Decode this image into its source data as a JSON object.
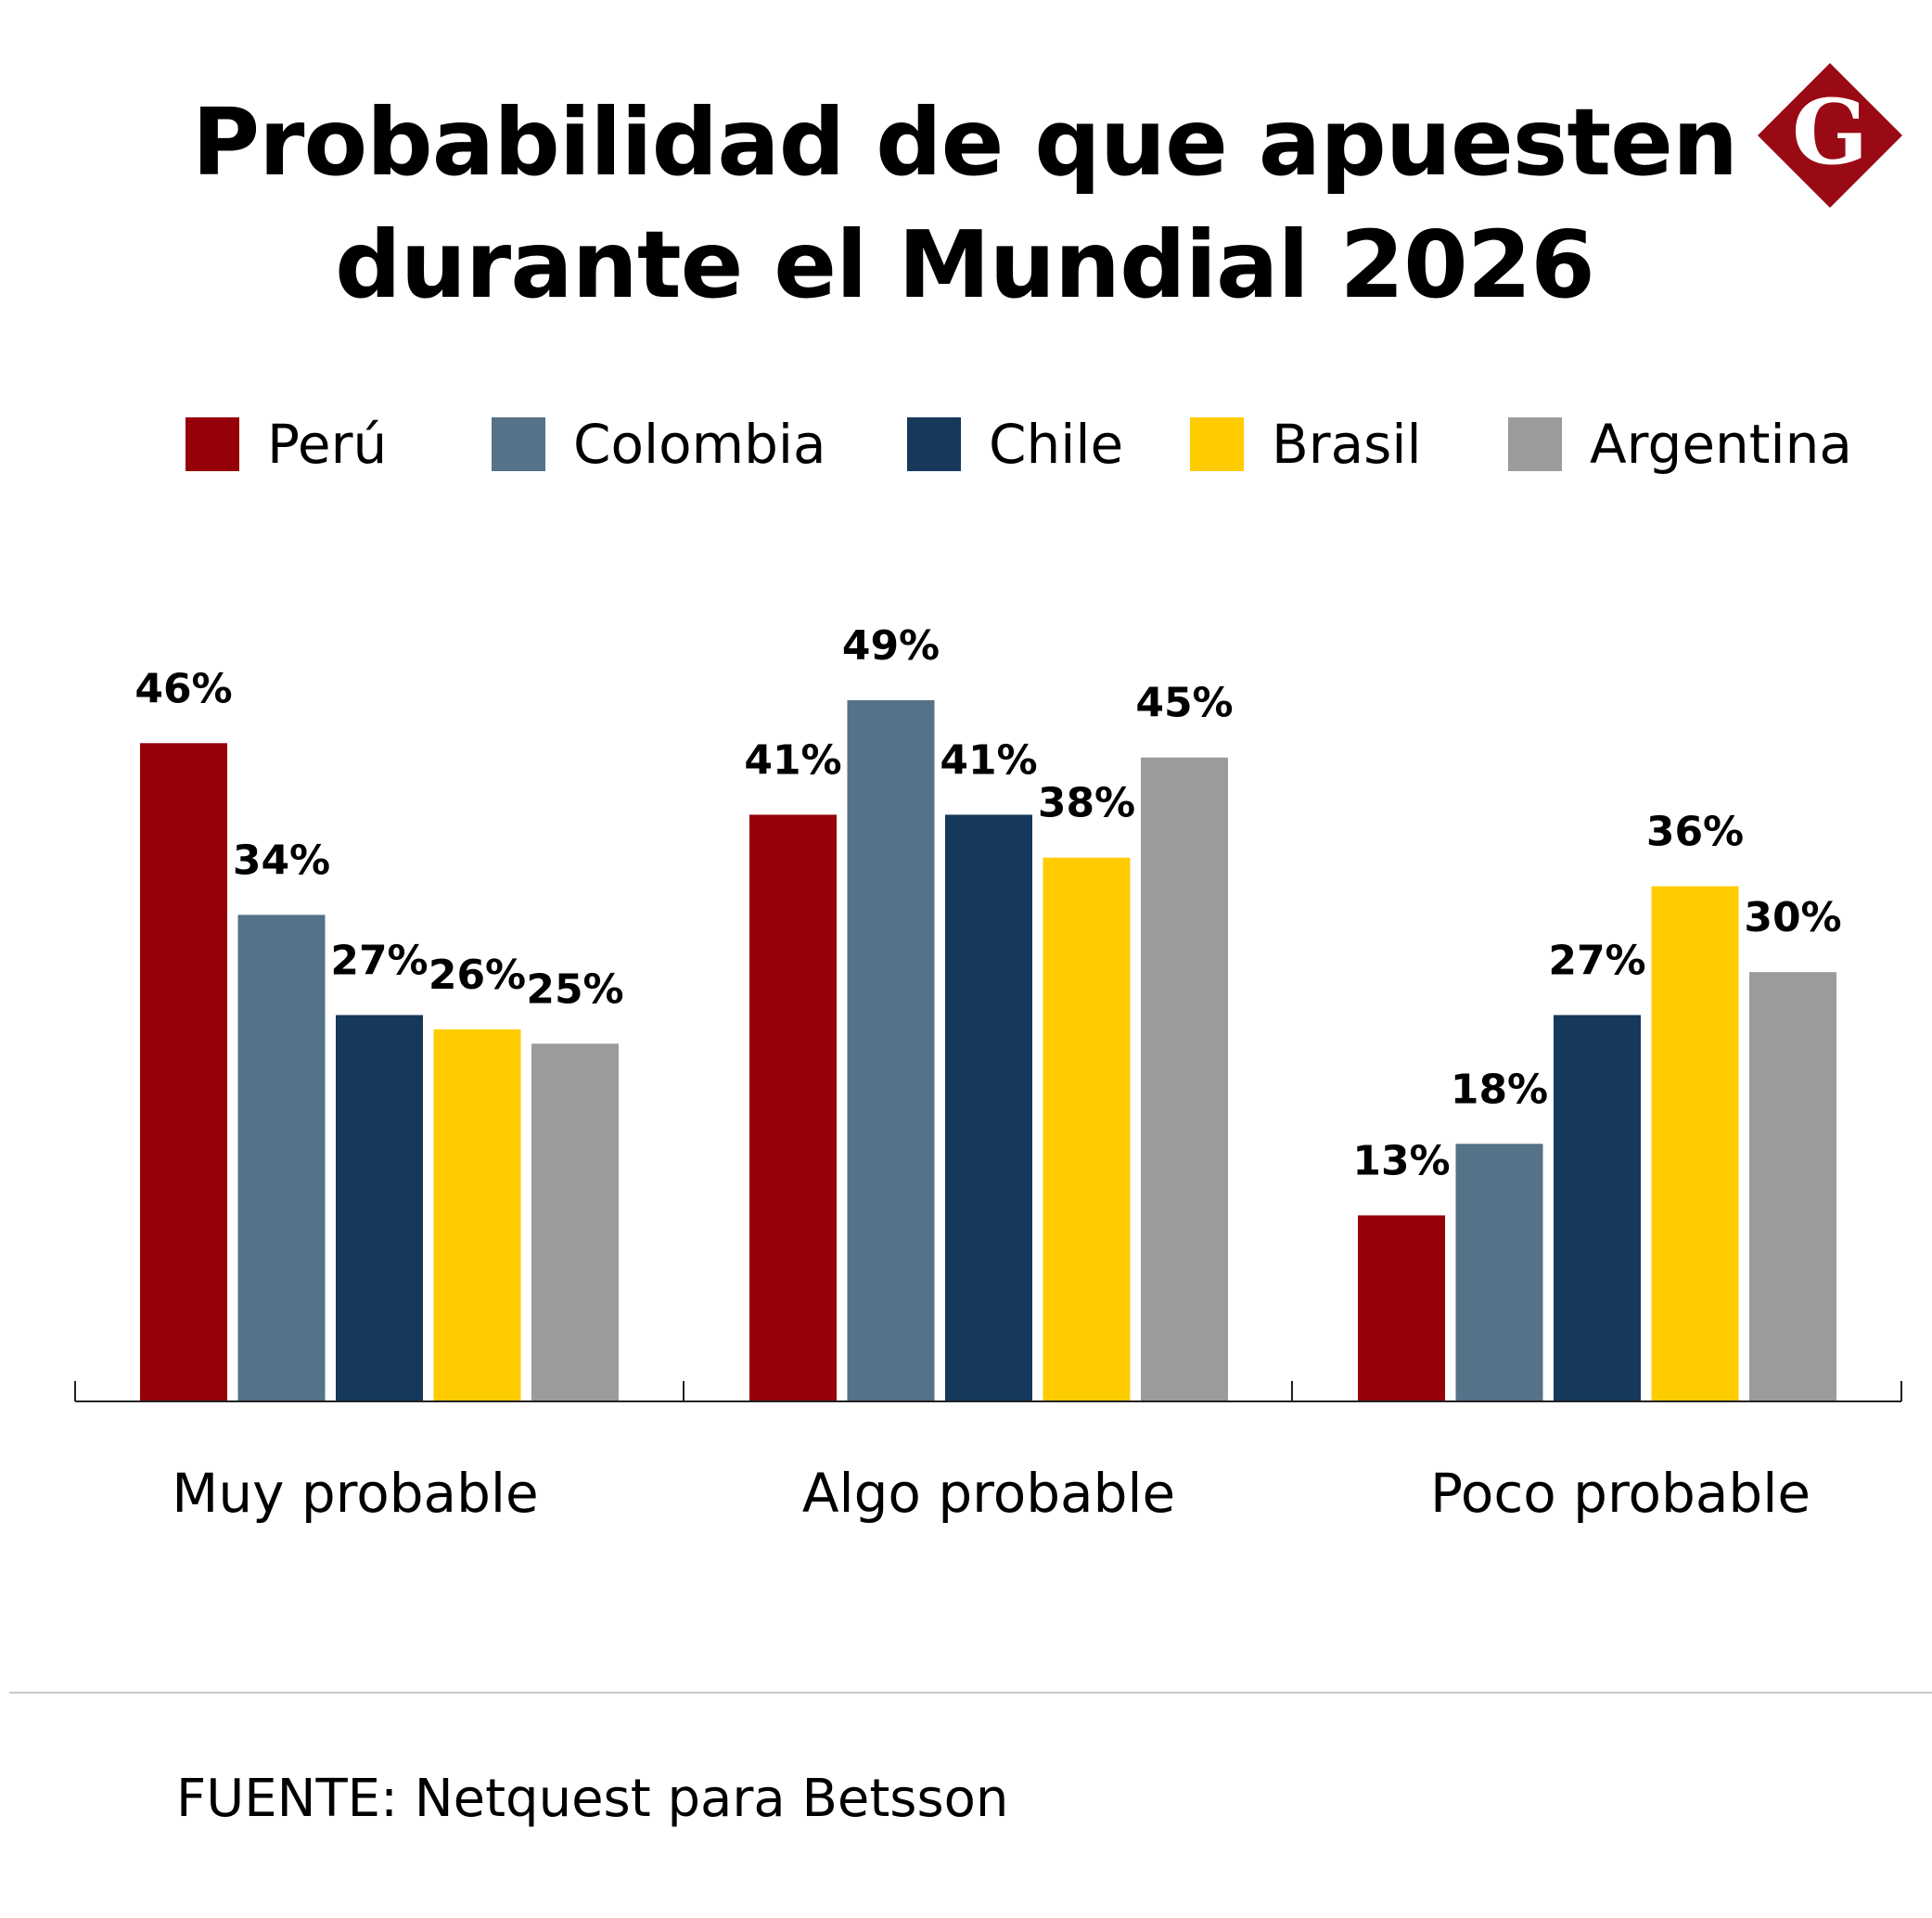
{
  "title_lines": [
    "Probabilidad de que apuesten",
    "durante el Mundial 2026"
  ],
  "logo_letter": "G",
  "logo_colors": {
    "diamond": "#9a0a14",
    "letter": "#ffffff"
  },
  "source": "FUENTE: Netquest para Betsson",
  "chart_data": {
    "type": "bar",
    "title": "Probabilidad de que apuesten durante el Mundial 2026",
    "categories": [
      "Muy probable",
      "Algo probable",
      "Poco probable"
    ],
    "series": [
      {
        "name": "Perú",
        "color": "#960008",
        "values": [
          46,
          41,
          13
        ]
      },
      {
        "name": "Colombia",
        "color": "#557288",
        "values": [
          34,
          49,
          18
        ]
      },
      {
        "name": "Chile",
        "color": "#16395b",
        "values": [
          27,
          41,
          27
        ]
      },
      {
        "name": "Brasil",
        "color": "#ffcc00",
        "values": [
          26,
          38,
          36
        ]
      },
      {
        "name": "Argentina",
        "color": "#9b9b9b",
        "values": [
          25,
          45,
          30
        ]
      }
    ],
    "value_suffix": "%",
    "ylim": [
      0,
      49
    ],
    "grid": false,
    "legend_position": "top"
  }
}
